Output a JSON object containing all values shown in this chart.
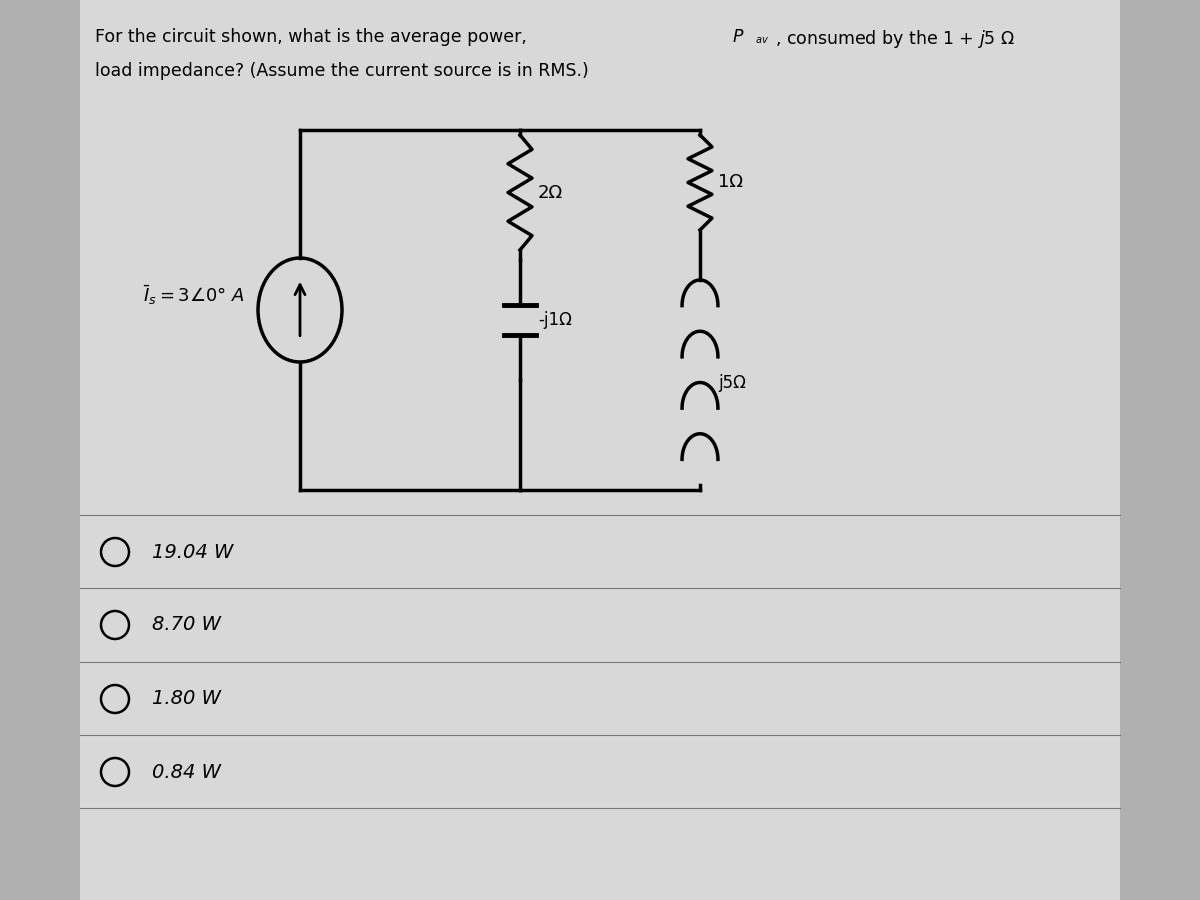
{
  "title_line1": "For the circuit shown, what is the average power, P",
  "title_pav_sub": "av",
  "title_line1_end": ", consumed by the 1 + j5 Ω",
  "title_line2": "load impedance? (Assume the current source is in RMS.)",
  "background_color": "#b0b0b0",
  "panel_color": "#d8d8d8",
  "circuit_bg": "#d0d8e0",
  "choices": [
    "19.04 W",
    "8.70 W",
    "1.80 W",
    "0.84 W"
  ],
  "source_label": "Is = 3∠0° A",
  "resistor_left": "2Ω",
  "resistor_right": "1Ω",
  "capacitor_label": "-j1Ω",
  "inductor_label": "j5Ω",
  "text_color": "#000000",
  "line_color": "#000000",
  "choice_circle_color": "#000000",
  "grid_line_color": "#888888"
}
